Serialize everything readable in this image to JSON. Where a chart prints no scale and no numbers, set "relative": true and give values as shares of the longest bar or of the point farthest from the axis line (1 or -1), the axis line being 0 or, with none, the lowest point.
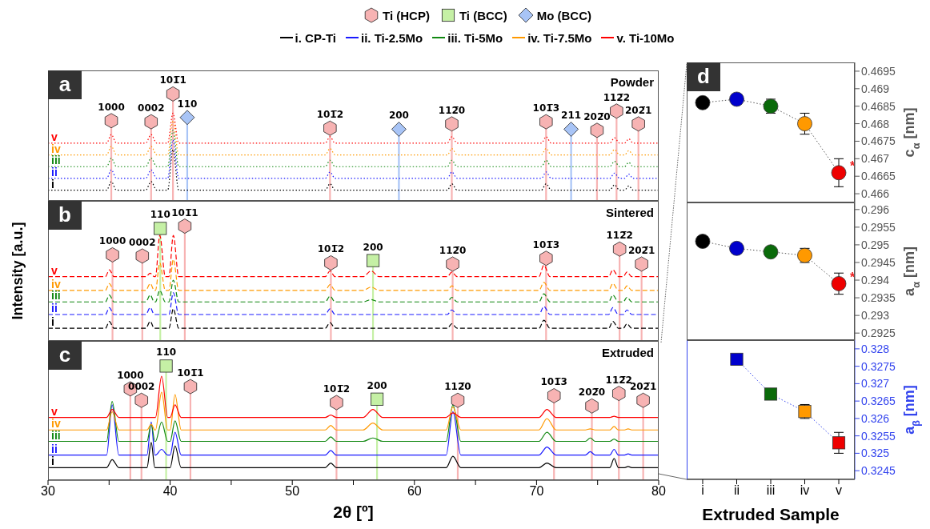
{
  "chart_data": [
    {
      "type": "line",
      "title": "Powder",
      "xlim": [
        30,
        80
      ],
      "ref_lines": [
        {
          "axis": "x",
          "value": 35.18,
          "color": "#f7b3b3"
        },
        {
          "axis": "x",
          "value": 38.44,
          "color": "#f7b3b3"
        },
        {
          "axis": "x",
          "value": 40.23,
          "color": "#f7b3b3"
        },
        {
          "axis": "x",
          "value": 41.4,
          "color": "#a8c4f6"
        },
        {
          "axis": "x",
          "value": 53.09,
          "color": "#f7b3b3"
        },
        {
          "axis": "x",
          "value": 58.73,
          "color": "#a8c4f6"
        },
        {
          "axis": "x",
          "value": 63.06,
          "color": "#f7b3b3"
        },
        {
          "axis": "x",
          "value": 70.78,
          "color": "#f7b3b3"
        },
        {
          "axis": "x",
          "value": 72.83,
          "color": "#a8c4f6"
        },
        {
          "axis": "x",
          "value": 74.95,
          "color": "#f7b3b3"
        },
        {
          "axis": "x",
          "value": 76.55,
          "color": "#f7b3b3"
        },
        {
          "axis": "x",
          "value": 78.34,
          "color": "#f7b3b3"
        }
      ],
      "tick_labels": false,
      "relative": true,
      "line_style": "dotted",
      "legend": "top",
      "annotations": [
        "a",
        {
          "text": "v",
          "x": 30,
          "y": 0.54
        },
        {
          "text": "iv",
          "x": 30,
          "y": 0.43
        },
        {
          "text": "iii",
          "x": 30,
          "y": 0.32
        },
        {
          "text": "ii",
          "x": 30,
          "y": 0.21
        },
        {
          "text": "i",
          "x": 30,
          "y": 0.1
        },
        {
          "text": "1000",
          "x": 35.18,
          "y": 0.75
        },
        {
          "text": "0002",
          "x": 38.44,
          "y": 0.74
        },
        {
          "text": "101̅1",
          "x": 40.23,
          "y": 1
        },
        {
          "text": "110",
          "x": 41.4,
          "y": 0.78
        },
        {
          "text": "101̅2",
          "x": 53.09,
          "y": 0.68
        },
        {
          "text": "200",
          "x": 58.73,
          "y": 0.67
        },
        {
          "text": "112̅0",
          "x": 63.06,
          "y": 0.72
        },
        {
          "text": "101̅3",
          "x": 70.78,
          "y": 0.74
        },
        {
          "text": "211",
          "x": 72.83,
          "y": 0.67
        },
        {
          "text": "202̅0",
          "x": 74.95,
          "y": 0.66
        },
        {
          "text": "112̅2",
          "x": 76.55,
          "y": 0.84
        },
        {
          "text": "202̅1",
          "x": 78.34,
          "y": 0.72
        }
      ],
      "series": [
        {
          "type": "scatter",
          "name": "Ti (HCP)",
          "color": "#f7b3b3",
          "x": [
            35.18,
            38.44,
            40.23,
            53.09,
            63.06,
            70.78,
            74.95,
            76.55,
            78.34
          ],
          "values": [
            0.75,
            0.74,
            1,
            0.68,
            0.72,
            0.74,
            0.66,
            0.84,
            0.72
          ]
        },
        {
          "type": "scatter",
          "name": "Mo (BCC)",
          "marker": "diamond",
          "color": "#a8c4f6",
          "x": [
            41.4,
            58.73,
            72.83
          ],
          "values": [
            0.78,
            0.67,
            0.67
          ]
        },
        {
          "name": "i. CP-Ti",
          "color": "#000000",
          "x": [
            30,
            34.8,
            35.18,
            35.6,
            38.0,
            38.44,
            38.9,
            39.8,
            40.23,
            40.7,
            52.7,
            53.09,
            53.5,
            62.7,
            63.06,
            63.5,
            70.4,
            70.78,
            71.2,
            76.0,
            76.38,
            76.8,
            77.2,
            77.56,
            77.9,
            80
          ],
          "values": [
            0.1,
            0.1,
            0.18,
            0.1,
            0.1,
            0.18,
            0.1,
            0.1,
            0.48,
            0.1,
            0.1,
            0.16,
            0.1,
            0.1,
            0.16,
            0.1,
            0.1,
            0.16,
            0.1,
            0.1,
            0.15,
            0.1,
            0.1,
            0.14,
            0.1,
            0.1
          ]
        },
        {
          "name": "ii. Ti-2.5Mo",
          "color": "#1a1aff",
          "x": [
            30,
            34.8,
            35.18,
            35.6,
            38.0,
            38.44,
            38.9,
            39.8,
            40.23,
            40.7,
            52.7,
            53.09,
            53.5,
            62.7,
            63.06,
            63.5,
            70.4,
            70.78,
            71.2,
            76.0,
            76.38,
            76.8,
            77.2,
            77.56,
            77.9,
            80
          ],
          "values": [
            0.21,
            0.21,
            0.29,
            0.21,
            0.21,
            0.29,
            0.21,
            0.21,
            0.57,
            0.21,
            0.21,
            0.27,
            0.21,
            0.21,
            0.27,
            0.21,
            0.21,
            0.27,
            0.21,
            0.21,
            0.26,
            0.21,
            0.21,
            0.25,
            0.21,
            0.21
          ]
        },
        {
          "name": "iii. Ti-5Mo",
          "color": "#118811",
          "x": [
            30,
            34.8,
            35.18,
            35.6,
            38.0,
            38.44,
            38.9,
            39.8,
            40.23,
            40.7,
            52.7,
            53.09,
            53.5,
            62.7,
            63.06,
            63.5,
            70.4,
            70.78,
            71.2,
            76.0,
            76.38,
            76.8,
            77.2,
            77.56,
            77.9,
            80
          ],
          "values": [
            0.32,
            0.32,
            0.4,
            0.32,
            0.32,
            0.4,
            0.32,
            0.32,
            0.66,
            0.32,
            0.32,
            0.38,
            0.32,
            0.32,
            0.38,
            0.32,
            0.32,
            0.38,
            0.32,
            0.32,
            0.37,
            0.32,
            0.32,
            0.36,
            0.32,
            0.32
          ]
        },
        {
          "name": "iv. Ti-7.5Mo",
          "color": "#ff9900",
          "x": [
            30,
            34.8,
            35.18,
            35.6,
            38.0,
            38.44,
            38.9,
            39.8,
            40.23,
            40.7,
            52.7,
            53.09,
            53.5,
            62.7,
            63.06,
            63.5,
            70.4,
            70.78,
            71.2,
            76.0,
            76.38,
            76.8,
            77.2,
            77.56,
            77.9,
            80
          ],
          "values": [
            0.43,
            0.43,
            0.51,
            0.43,
            0.43,
            0.51,
            0.43,
            0.43,
            0.75,
            0.43,
            0.43,
            0.49,
            0.43,
            0.43,
            0.49,
            0.43,
            0.43,
            0.49,
            0.43,
            0.43,
            0.48,
            0.43,
            0.43,
            0.47,
            0.43,
            0.43
          ]
        },
        {
          "name": "v. Ti-10Mo",
          "color": "#ff0000",
          "x": [
            30,
            34.8,
            35.18,
            35.6,
            38.0,
            38.44,
            38.9,
            39.8,
            40.23,
            40.7,
            52.7,
            53.09,
            53.5,
            62.7,
            63.06,
            63.5,
            70.4,
            70.78,
            71.2,
            76.0,
            76.38,
            76.8,
            77.2,
            77.56,
            77.9,
            80
          ],
          "values": [
            0.54,
            0.54,
            0.62,
            0.54,
            0.54,
            0.62,
            0.54,
            0.54,
            0.82,
            0.54,
            0.54,
            0.6,
            0.54,
            0.54,
            0.6,
            0.54,
            0.54,
            0.6,
            0.54,
            0.54,
            0.59,
            0.54,
            0.54,
            0.58,
            0.54,
            0.54
          ]
        }
      ]
    },
    {
      "type": "line",
      "title": "Sintered",
      "ylabel": "Intensity [a.u.]",
      "xlim": [
        30,
        80
      ],
      "ref_lines": [
        {
          "axis": "x",
          "value": 35.28,
          "color": "#f7b3b3"
        },
        {
          "axis": "x",
          "value": 37.72,
          "color": "#f7b3b3"
        },
        {
          "axis": "x",
          "value": 39.19,
          "color": "#c5f0a5"
        },
        {
          "axis": "x",
          "value": 41.2,
          "color": "#f7b3b3"
        },
        {
          "axis": "x",
          "value": 53.16,
          "color": "#f7b3b3"
        },
        {
          "axis": "x",
          "value": 56.61,
          "color": "#c5f0a5"
        },
        {
          "axis": "x",
          "value": 63.13,
          "color": "#f7b3b3"
        },
        {
          "axis": "x",
          "value": 70.78,
          "color": "#f7b3b3"
        },
        {
          "axis": "x",
          "value": 76.8,
          "color": "#f7b3b3"
        },
        {
          "axis": "x",
          "value": 78.6,
          "color": "#f7b3b3"
        }
      ],
      "tick_labels": false,
      "relative": true,
      "line_style": "dashed",
      "annotations": [
        "b",
        {
          "text": "v",
          "x": 30,
          "y": 0.56
        },
        {
          "text": "iv",
          "x": 30,
          "y": 0.44
        },
        {
          "text": "iii",
          "x": 30,
          "y": 0.34
        },
        {
          "text": "ii",
          "x": 30,
          "y": 0.23
        },
        {
          "text": "i",
          "x": 30,
          "y": 0.11
        },
        {
          "text": "1000",
          "x": 35.28,
          "y": 0.75
        },
        {
          "text": "0002",
          "x": 37.72,
          "y": 0.74
        },
        {
          "text": "110",
          "x": 39.19,
          "y": 0.98
        },
        {
          "text": "101̅1",
          "x": 41.2,
          "y": 1
        },
        {
          "text": "101̅2",
          "x": 53.16,
          "y": 0.68
        },
        {
          "text": "200",
          "x": 56.61,
          "y": 0.7
        },
        {
          "text": "112̅0",
          "x": 63.13,
          "y": 0.67
        },
        {
          "text": "101̅3",
          "x": 70.78,
          "y": 0.72
        },
        {
          "text": "112̅2",
          "x": 76.8,
          "y": 0.8
        },
        {
          "text": "202̅1",
          "x": 78.6,
          "y": 0.67
        }
      ],
      "series": [
        {
          "type": "scatter",
          "color": "#f7b3b3",
          "x": [
            35.28,
            37.72,
            41.2,
            53.16,
            63.13,
            70.78,
            76.8,
            78.6
          ],
          "values": [
            0.75,
            0.74,
            1,
            0.68,
            0.67,
            0.72,
            0.8,
            0.67
          ]
        },
        {
          "type": "scatter",
          "name": "Ti (BCC)",
          "marker": "square",
          "color": "#c5f0a5",
          "x": [
            39.19,
            56.61
          ],
          "values": [
            0.98,
            0.7
          ]
        },
        {
          "color": "#000000",
          "x": [
            30,
            34.7,
            35.02,
            35.4,
            38.0,
            38.37,
            38.7,
            38.8,
            39.15,
            39.6,
            39.9,
            40.26,
            40.7,
            52.7,
            53.09,
            53.5,
            55.8,
            56.45,
            57.1,
            62.7,
            63.06,
            63.5,
            70.2,
            70.6,
            71.1,
            75.9,
            76.25,
            76.7,
            77.1,
            77.4,
            77.8,
            80
          ],
          "values": [
            0.11,
            0.11,
            0.17,
            0.11,
            0.11,
            0.17,
            0.11,
            0.11,
            0.11,
            0.11,
            0.11,
            0.28,
            0.11,
            0.11,
            0.16,
            0.11,
            0.11,
            0.11,
            0.11,
            0.11,
            0.15,
            0.11,
            0.11,
            0.18,
            0.11,
            0.11,
            0.17,
            0.11,
            0.11,
            0.15,
            0.11,
            0.11
          ]
        },
        {
          "color": "#1a1aff",
          "x": [
            30,
            34.7,
            35.02,
            35.4,
            38.0,
            38.37,
            38.7,
            38.8,
            39.15,
            39.6,
            39.9,
            40.26,
            40.7,
            52.7,
            53.09,
            53.5,
            55.8,
            56.45,
            57.1,
            62.7,
            63.06,
            63.5,
            70.2,
            70.6,
            71.1,
            75.9,
            76.25,
            76.7,
            77.1,
            77.4,
            77.8,
            80
          ],
          "values": [
            0.23,
            0.23,
            0.29,
            0.23,
            0.23,
            0.29,
            0.23,
            0.23,
            0.23,
            0.23,
            0.23,
            0.42,
            0.23,
            0.23,
            0.28,
            0.23,
            0.23,
            0.23,
            0.23,
            0.23,
            0.27,
            0.23,
            0.23,
            0.3,
            0.23,
            0.23,
            0.29,
            0.23,
            0.23,
            0.27,
            0.23,
            0.23
          ]
        },
        {
          "color": "#118811",
          "x": [
            30,
            34.7,
            35.02,
            35.4,
            38.0,
            38.37,
            38.7,
            38.8,
            39.15,
            39.6,
            39.9,
            40.26,
            40.7,
            52.7,
            53.09,
            53.5,
            55.8,
            56.45,
            57.1,
            62.7,
            63.06,
            63.5,
            70.2,
            70.6,
            71.1,
            75.9,
            76.25,
            76.7,
            77.1,
            77.4,
            77.8,
            80
          ],
          "values": [
            0.34,
            0.34,
            0.4,
            0.34,
            0.34,
            0.4,
            0.34,
            0.34,
            0.44,
            0.34,
            0.34,
            0.53,
            0.34,
            0.34,
            0.39,
            0.34,
            0.34,
            0.36,
            0.34,
            0.34,
            0.38,
            0.34,
            0.34,
            0.41,
            0.34,
            0.34,
            0.4,
            0.34,
            0.34,
            0.38,
            0.34,
            0.34
          ]
        },
        {
          "color": "#ff9900",
          "x": [
            30,
            34.7,
            35.02,
            35.4,
            38.0,
            38.37,
            38.7,
            38.8,
            39.15,
            39.6,
            39.9,
            40.26,
            40.7,
            52.7,
            53.09,
            53.5,
            55.8,
            56.45,
            57.1,
            62.7,
            63.06,
            63.5,
            70.2,
            70.6,
            71.1,
            75.9,
            76.25,
            76.7,
            77.1,
            77.4,
            77.8,
            80
          ],
          "values": [
            0.44,
            0.44,
            0.5,
            0.44,
            0.44,
            0.5,
            0.44,
            0.44,
            0.68,
            0.44,
            0.44,
            0.71,
            0.44,
            0.44,
            0.49,
            0.44,
            0.44,
            0.47,
            0.44,
            0.44,
            0.48,
            0.44,
            0.44,
            0.51,
            0.44,
            0.44,
            0.5,
            0.44,
            0.44,
            0.48,
            0.44,
            0.44
          ]
        },
        {
          "color": "#ff0000",
          "x": [
            30,
            34.7,
            35.02,
            35.4,
            38.0,
            38.37,
            38.7,
            38.8,
            39.15,
            39.6,
            39.9,
            40.26,
            40.7,
            52.7,
            53.09,
            53.5,
            55.8,
            56.45,
            57.1,
            62.7,
            63.06,
            63.5,
            70.2,
            70.6,
            71.1,
            75.9,
            76.25,
            76.7,
            77.1,
            77.4,
            77.8,
            80
          ],
          "values": [
            0.56,
            0.56,
            0.62,
            0.56,
            0.56,
            0.59,
            0.56,
            0.56,
            0.92,
            0.56,
            0.56,
            0.92,
            0.56,
            0.56,
            0.61,
            0.56,
            0.56,
            0.61,
            0.56,
            0.56,
            0.6,
            0.56,
            0.56,
            0.66,
            0.56,
            0.56,
            0.62,
            0.56,
            0.56,
            0.6,
            0.56,
            0.56
          ]
        }
      ]
    },
    {
      "type": "line",
      "title": "Extruded",
      "xlabel": "2θ [º]",
      "xlim": [
        30,
        80
      ],
      "ref_lines": [
        {
          "axis": "x",
          "value": 36.74,
          "color": "#f7b3b3"
        },
        {
          "axis": "x",
          "value": 37.65,
          "color": "#f7b3b3"
        },
        {
          "axis": "x",
          "value": 39.67,
          "color": "#c5f0a5"
        },
        {
          "axis": "x",
          "value": 41.66,
          "color": "#f7b3b3"
        },
        {
          "axis": "x",
          "value": 53.62,
          "color": "#f7b3b3"
        },
        {
          "axis": "x",
          "value": 56.94,
          "color": "#c5f0a5"
        },
        {
          "axis": "x",
          "value": 63.55,
          "color": "#f7b3b3"
        },
        {
          "axis": "x",
          "value": 71.43,
          "color": "#f7b3b3"
        },
        {
          "axis": "x",
          "value": 74.53,
          "color": "#f7b3b3"
        },
        {
          "axis": "x",
          "value": 76.74,
          "color": "#f7b3b3"
        },
        {
          "axis": "x",
          "value": 78.73,
          "color": "#f7b3b3"
        }
      ],
      "xticks": [
        30,
        {
          "value": 35,
          "label": null
        },
        40,
        {
          "value": 45,
          "label": null
        },
        50,
        {
          "value": 55,
          "label": null
        },
        60,
        {
          "value": 65,
          "label": null
        },
        70,
        {
          "value": 75,
          "label": null
        },
        80
      ],
      "relative": true,
      "line_style": "solid",
      "annotations": [
        "c",
        {
          "text": "v",
          "x": 30,
          "y": 0.55
        },
        {
          "text": "iv",
          "x": 30,
          "y": 0.44
        },
        {
          "text": "iii",
          "x": 30,
          "y": 0.34
        },
        {
          "text": "ii",
          "x": 30,
          "y": 0.22
        },
        {
          "text": "i",
          "x": 30,
          "y": 0.11
        },
        {
          "text": "1000",
          "x": 36.74,
          "y": 0.8
        },
        {
          "text": "0002",
          "x": 37.65,
          "y": 0.7
        },
        {
          "text": "110",
          "x": 39.67,
          "y": 1
        },
        {
          "text": "101̅1",
          "x": 41.66,
          "y": 0.82
        },
        {
          "text": "101̅2",
          "x": 53.62,
          "y": 0.68
        },
        {
          "text": "200",
          "x": 56.94,
          "y": 0.71
        },
        {
          "text": "112̅0",
          "x": 63.55,
          "y": 0.7
        },
        {
          "text": "101̅3",
          "x": 71.43,
          "y": 0.74
        },
        {
          "text": "202̅0",
          "x": 74.53,
          "y": 0.65
        },
        {
          "text": "112̅2",
          "x": 76.74,
          "y": 0.76
        },
        {
          "text": "202̅1",
          "x": 78.73,
          "y": 0.7
        }
      ],
      "series": [
        {
          "type": "scatter",
          "color": "#f7b3b3",
          "x": [
            36.74,
            37.65,
            41.66,
            53.62,
            63.55,
            71.43,
            74.53,
            76.74,
            78.73
          ],
          "values": [
            0.8,
            0.7,
            0.82,
            0.68,
            0.7,
            0.74,
            0.65,
            0.76,
            0.7
          ]
        },
        {
          "type": "scatter",
          "marker": "square",
          "color": "#c5f0a5",
          "x": [
            39.67,
            56.94
          ],
          "values": [
            1,
            0.71
          ]
        },
        {
          "color": "#000000",
          "x": [
            30,
            34.8,
            35.25,
            35.8,
            38.1,
            38.45,
            38.75,
            38.8,
            39.3,
            39.8,
            40.0,
            40.4,
            40.9,
            52.7,
            53.15,
            53.6,
            55.8,
            56.6,
            57.4,
            62.6,
            63.15,
            63.8,
            70.2,
            70.85,
            71.6,
            74.0,
            74.4,
            74.8,
            76.0,
            76.35,
            76.7,
            77.2,
            77.5,
            77.8,
            80
          ],
          "values": [
            0.11,
            0.11,
            0.18,
            0.11,
            0.11,
            0.33,
            0.11,
            0.11,
            0.11,
            0.11,
            0.11,
            0.3,
            0.11,
            0.11,
            0.15,
            0.11,
            0.11,
            0.11,
            0.11,
            0.11,
            0.21,
            0.11,
            0.11,
            0.15,
            0.11,
            0.11,
            0.11,
            0.11,
            0.11,
            0.19,
            0.11,
            0.11,
            0.12,
            0.11,
            0.11
          ]
        },
        {
          "color": "#1a1aff",
          "x": [
            30,
            34.8,
            35.25,
            35.8,
            38.1,
            38.45,
            38.75,
            38.8,
            39.3,
            39.8,
            40.0,
            40.4,
            40.9,
            52.7,
            53.15,
            53.6,
            55.8,
            56.6,
            57.4,
            62.6,
            63.15,
            63.8,
            70.2,
            70.85,
            71.6,
            74.0,
            74.4,
            74.8,
            76.0,
            76.35,
            76.7,
            77.2,
            77.5,
            77.8,
            80
          ],
          "values": [
            0.22,
            0.22,
            0.66,
            0.22,
            0.22,
            0.51,
            0.22,
            0.22,
            0.27,
            0.22,
            0.22,
            0.42,
            0.22,
            0.22,
            0.26,
            0.22,
            0.22,
            0.22,
            0.22,
            0.22,
            0.6,
            0.22,
            0.22,
            0.29,
            0.22,
            0.22,
            0.25,
            0.22,
            0.22,
            0.27,
            0.22,
            0.22,
            0.23,
            0.22,
            0.22
          ]
        },
        {
          "color": "#118811",
          "x": [
            30,
            34.8,
            35.25,
            35.8,
            38.1,
            38.45,
            38.75,
            38.8,
            39.3,
            39.8,
            40.0,
            40.4,
            40.9,
            52.7,
            53.15,
            53.6,
            55.8,
            56.6,
            57.4,
            62.6,
            63.15,
            63.8,
            70.2,
            70.85,
            71.6,
            74.0,
            74.4,
            74.8,
            76.0,
            76.35,
            76.7,
            77.2,
            77.5,
            77.8,
            80
          ],
          "values": [
            0.34,
            0.34,
            0.69,
            0.34,
            0.34,
            0.49,
            0.34,
            0.34,
            0.51,
            0.34,
            0.34,
            0.52,
            0.34,
            0.34,
            0.38,
            0.34,
            0.34,
            0.37,
            0.34,
            0.34,
            0.66,
            0.34,
            0.34,
            0.42,
            0.34,
            0.34,
            0.37,
            0.34,
            0.34,
            0.36,
            0.34,
            0.34,
            0.34,
            0.34,
            0.34
          ]
        },
        {
          "color": "#ff9900",
          "x": [
            30,
            34.8,
            35.25,
            35.8,
            38.1,
            38.45,
            38.75,
            38.8,
            39.3,
            39.8,
            40.0,
            40.4,
            40.9,
            52.7,
            53.15,
            53.6,
            55.8,
            56.6,
            57.4,
            62.6,
            63.15,
            63.8,
            70.2,
            70.85,
            71.6,
            74.0,
            74.4,
            74.8,
            76.0,
            76.35,
            76.7,
            77.2,
            77.5,
            77.8,
            80
          ],
          "values": [
            0.44,
            0.44,
            0.6,
            0.44,
            0.44,
            0.49,
            0.44,
            0.44,
            0.77,
            0.44,
            0.44,
            0.75,
            0.44,
            0.44,
            0.48,
            0.44,
            0.44,
            0.5,
            0.44,
            0.44,
            0.64,
            0.44,
            0.44,
            0.54,
            0.44,
            0.44,
            0.45,
            0.44,
            0.44,
            0.47,
            0.44,
            0.44,
            0.45,
            0.44,
            0.44
          ]
        },
        {
          "color": "#ff0000",
          "x": [
            30,
            34.8,
            35.25,
            35.8,
            38.1,
            38.45,
            38.75,
            38.8,
            39.3,
            39.8,
            40.0,
            40.4,
            40.9,
            52.7,
            53.15,
            53.6,
            55.8,
            56.6,
            57.4,
            62.6,
            63.15,
            63.8,
            70.2,
            70.85,
            71.6,
            74.0,
            74.4,
            74.8,
            76.0,
            76.35,
            76.7,
            77.2,
            77.5,
            77.8,
            80
          ],
          "values": [
            0.55,
            0.55,
            0.62,
            0.55,
            0.55,
            0.55,
            0.55,
            0.55,
            0.91,
            0.55,
            0.55,
            0.66,
            0.55,
            0.55,
            0.57,
            0.55,
            0.55,
            0.62,
            0.55,
            0.55,
            0.59,
            0.55,
            0.55,
            0.62,
            0.55,
            0.55,
            0.55,
            0.55,
            0.55,
            0.56,
            0.55,
            0.55,
            0.55,
            0.55,
            0.55
          ]
        }
      ]
    },
    {
      "type": "line",
      "categories": [
        "i",
        "ii",
        "iii",
        "iv",
        "v"
      ],
      "ylabel": "c$_{α}$ [nm]",
      "ylim": [
        0.46575,
        0.46975
      ],
      "yticks": [
        0.466,
        0.4665,
        0.467,
        0.4675,
        0.468,
        0.4685,
        0.469,
        0.4695
      ],
      "tick_labels": "y",
      "marker": "circle",
      "line_style": "dotted",
      "annotations": [
        "d",
        {
          "text": "*",
          "x": "v",
          "y": 0.4668
        }
      ],
      "series": [
        {
          "color": "#555555",
          "colors": [
            "#000000",
            "#0000cc",
            "#0a6a0a",
            "#ff9900",
            "#ee0000"
          ],
          "values": [
            0.4686,
            0.4687,
            0.4685,
            0.468,
            0.4666
          ],
          "errors": [
            null,
            null,
            0.0002,
            0.0003,
            0.0004
          ]
        }
      ]
    },
    {
      "type": "line",
      "categories": [
        "i",
        "ii",
        "iii",
        "iv",
        "v"
      ],
      "ylabel": "a$_{α}$ [nm]",
      "ylim": [
        0.2923,
        0.2962
      ],
      "yticks": [
        0.2925,
        0.293,
        0.2935,
        0.294,
        0.2945,
        0.295,
        0.2955,
        0.296
      ],
      "tick_labels": "y",
      "marker": "circle",
      "line_style": "dotted",
      "annotations": [
        {
          "text": "*",
          "x": "v",
          "y": 0.2941
        }
      ],
      "series": [
        {
          "color": "#555555",
          "colors": [
            "#000000",
            "#0000cc",
            "#0a6a0a",
            "#ff9900",
            "#ee0000"
          ],
          "values": [
            0.2951,
            0.2949,
            0.2948,
            0.2947,
            0.2939
          ],
          "errors": [
            null,
            null,
            null,
            0.0002,
            0.0003
          ]
        }
      ]
    },
    {
      "type": "line",
      "categories": [
        "i",
        "ii",
        "iii",
        "iv",
        "v"
      ],
      "xlabel": "Extruded Sample",
      "ylabel": "a$_{β}$ [nm]",
      "ylim": [
        0.32425,
        0.32825
      ],
      "yticks": [
        0.3245,
        0.325,
        0.3255,
        0.326,
        0.3265,
        0.327,
        0.3275,
        0.328
      ],
      "marker": "square",
      "line_style": "dotted",
      "series": [
        {
          "color": "#3344ee",
          "colors": [
            null,
            "#0000cc",
            "#0a6a0a",
            "#ff9900",
            "#ee0000"
          ],
          "values": [
            null,
            0.3277,
            0.3267,
            0.3262,
            0.3253
          ],
          "errors": [
            null,
            null,
            null,
            0.0002,
            0.0003
          ]
        }
      ]
    }
  ]
}
